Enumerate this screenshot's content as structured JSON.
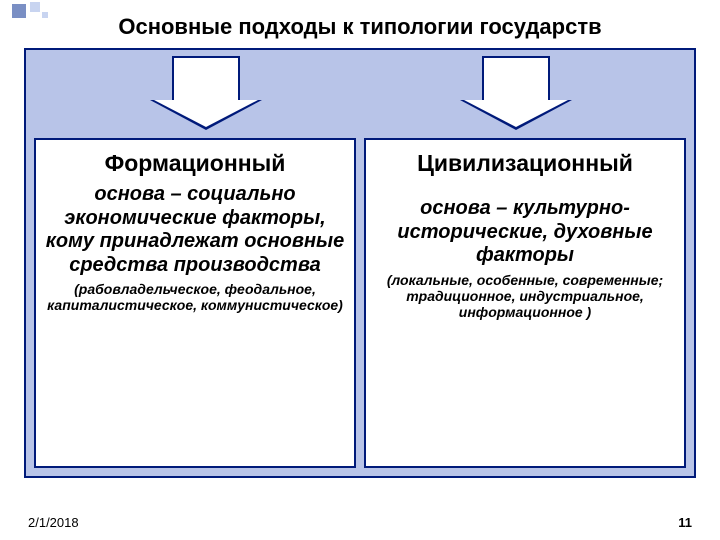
{
  "title": "Основные подходы к типологии государств",
  "panel": {
    "border_color": "#001a7a",
    "background_color": "#b8c4e8"
  },
  "arrows": {
    "fill_color": "#ffffff",
    "border_color": "#001a7a"
  },
  "columns": [
    {
      "heading": "Формационный",
      "body": "основа – социально экономические факторы, кому принадлежат основные средства производства",
      "note": "(рабовладельческое, феодальное, капиталистическое, коммунистическое)"
    },
    {
      "heading": "Цивилизационный",
      "body": "основа – культурно-исторические, духовные факторы",
      "note": "(локальные, особенные, современные; традиционное, индустриальное, информационное )"
    }
  ],
  "footer": {
    "date": "2/1/2018",
    "page": "11"
  },
  "style": {
    "title_fontsize": 22,
    "heading_fontsize": 23,
    "body_fontsize": 20,
    "note_fontsize": 14,
    "card_bg": "#ffffff",
    "card_border": "#001a7a",
    "page_bg": "#ffffff"
  }
}
